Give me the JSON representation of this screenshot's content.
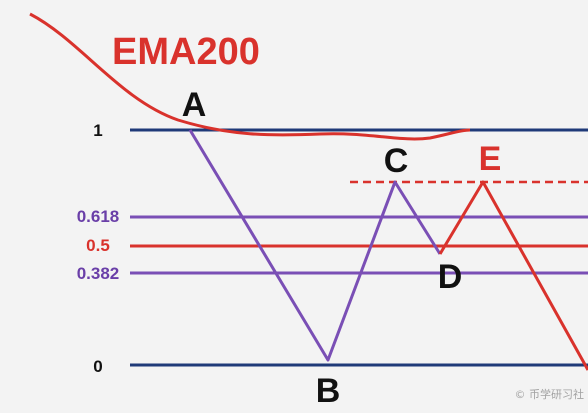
{
  "title": "EMA200",
  "colors": {
    "background": "#f3f3f3",
    "ema": "#d9322c",
    "zero_one_line": "#1f3a78",
    "fib_618_382": "#7a4fb5",
    "fib_50": "#d9322c",
    "zigzag": "#7a4fb5",
    "zigzag_red": "#d9322c",
    "point_label": "#111111",
    "point_label_red": "#d9322c"
  },
  "levels": [
    {
      "value": 1,
      "label": "1",
      "color": "#1f3a78",
      "label_color": "#111111"
    },
    {
      "value": 0.618,
      "label": "0.618",
      "color": "#7a4fb5",
      "label_color": "#6a3fa8"
    },
    {
      "value": 0.5,
      "label": "0.5",
      "color": "#d9322c",
      "label_color": "#d9322c"
    },
    {
      "value": 0.382,
      "label": "0.382",
      "color": "#7a4fb5",
      "label_color": "#6a3fa8"
    },
    {
      "value": 0,
      "label": "0",
      "color": "#1f3a78",
      "label_color": "#111111"
    }
  ],
  "points": [
    {
      "name": "A",
      "value": 1.0,
      "color": "#111111"
    },
    {
      "name": "B",
      "value": 0.0,
      "color": "#111111"
    },
    {
      "name": "C",
      "value": 0.785,
      "color": "#111111"
    },
    {
      "name": "D",
      "value": 0.5,
      "color": "#111111"
    },
    {
      "name": "E",
      "value": 0.785,
      "color": "#d9322c"
    }
  ],
  "watermark": "© 币学研习社"
}
